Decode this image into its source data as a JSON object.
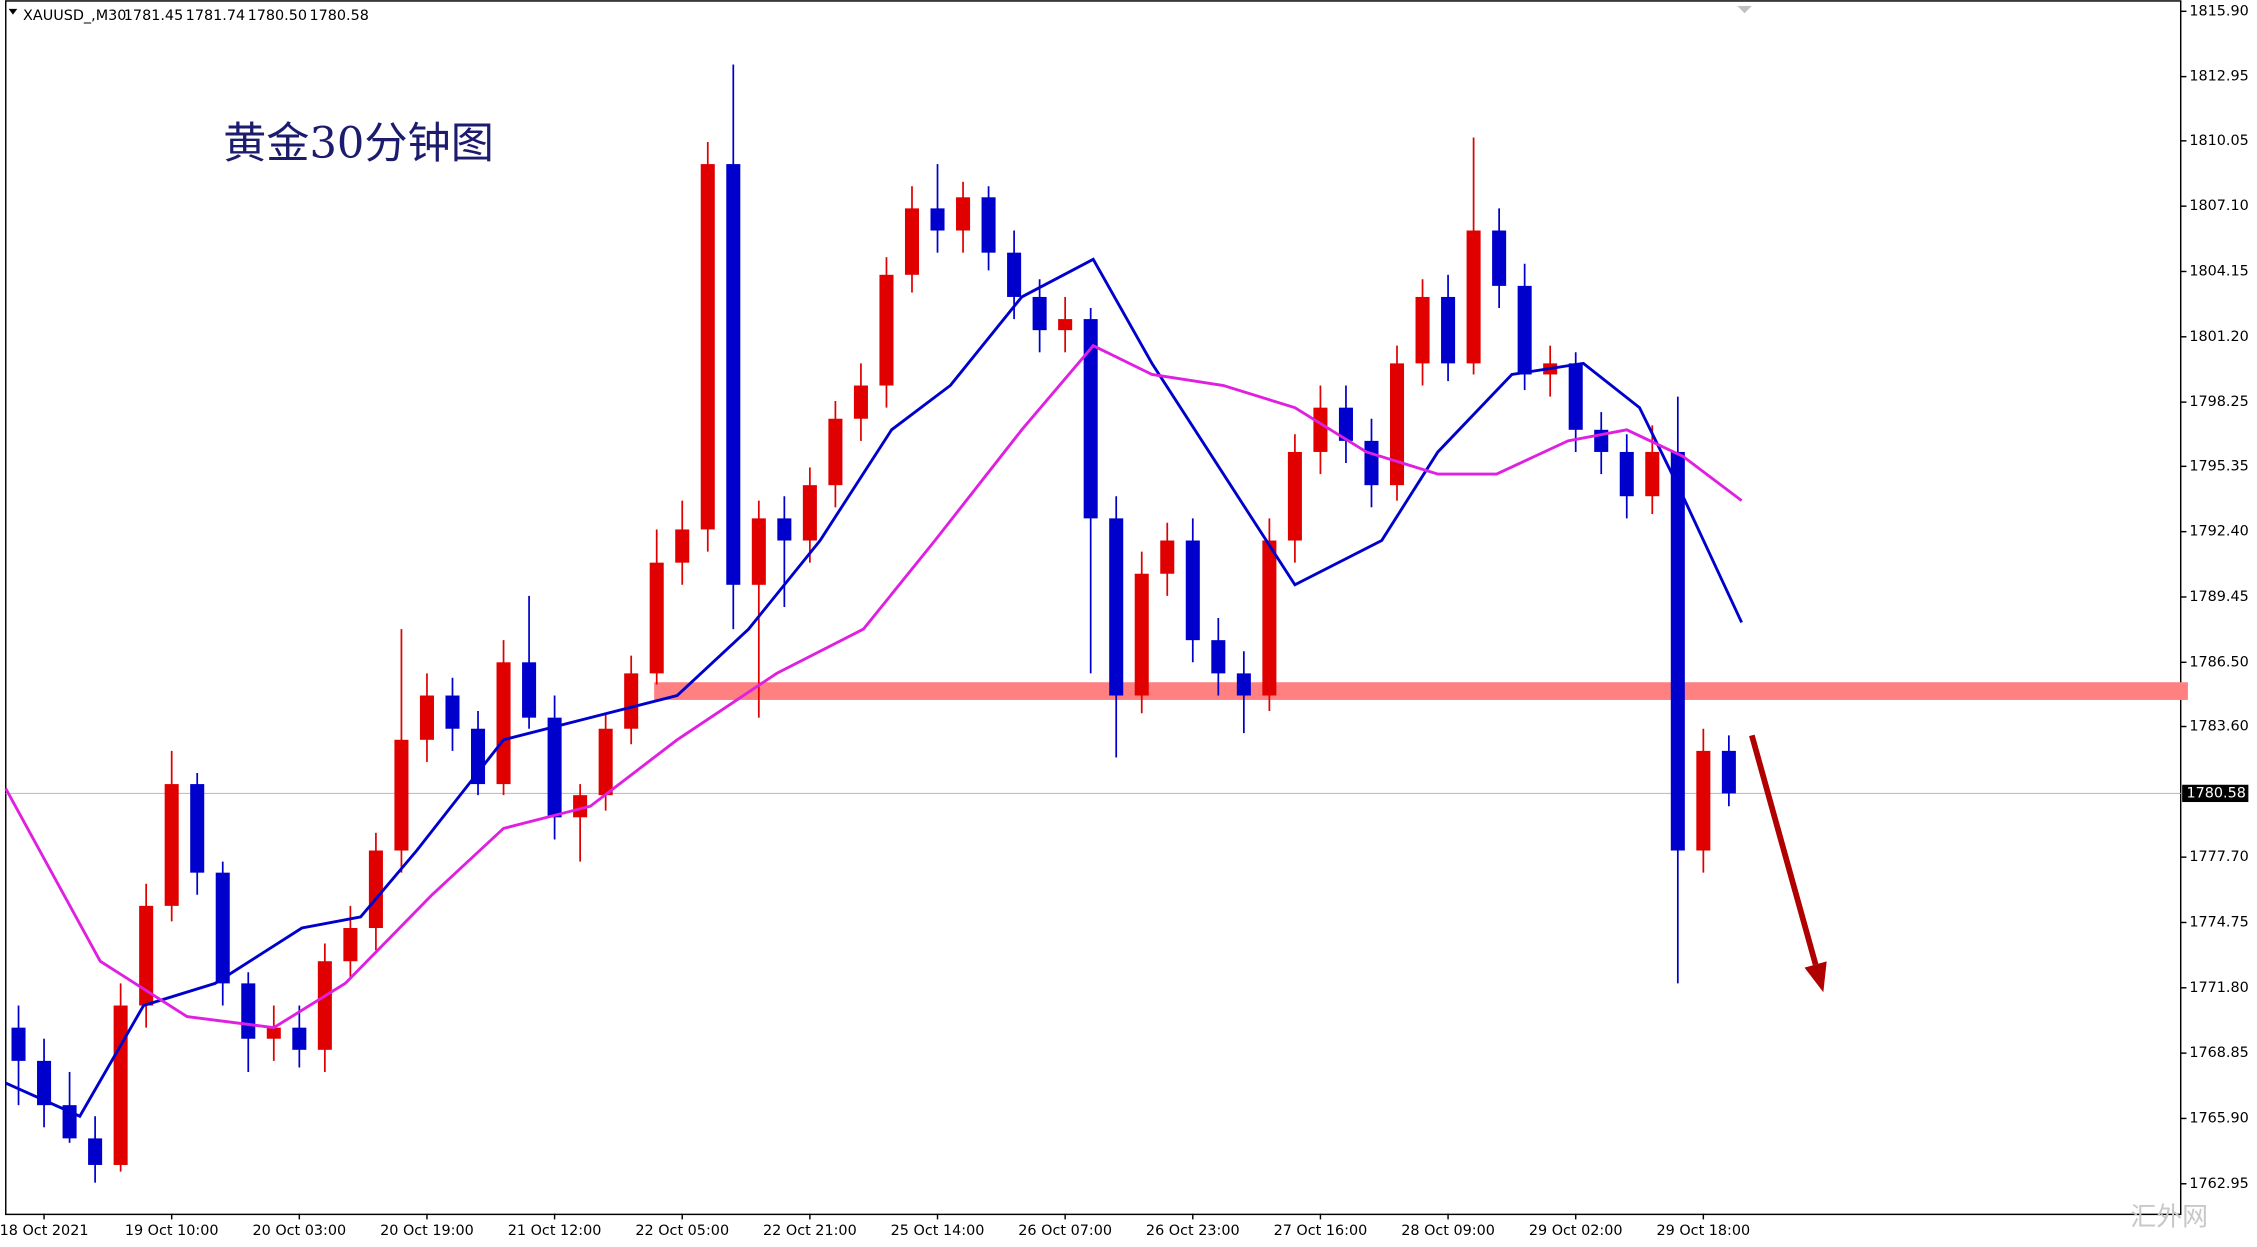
{
  "chart_data": {
    "type": "candlestick",
    "header": {
      "symbol": "XAUUSD_,M30",
      "ohlc": [
        1781.45,
        1781.74,
        {
          "value": 1780.5,
          "label": "1780.50"
        },
        1780.58
      ]
    },
    "title": "黄金30分钟图",
    "watermark": "汇外网",
    "up_color": "#e00000",
    "down_color": "#0000cc",
    "open": [
      1770,
      1768.5,
      1766.5,
      1765,
      1763.8,
      1771,
      1775.5,
      1781,
      1777,
      1772,
      1769.5,
      1770,
      1769,
      1773,
      1774.5,
      1778,
      1783,
      1785,
      1783.5,
      1781,
      1786.5,
      1784,
      1779.5,
      1780.5,
      1783.5,
      1786,
      1791,
      1792.5,
      1809,
      1790,
      1793,
      1792,
      1794.5,
      1797.5,
      1799,
      1804,
      1807,
      1806,
      1807.5,
      1805,
      1803,
      1801.5,
      1802,
      1793,
      1785,
      1790.5,
      1792,
      1787.5,
      1786,
      1785,
      1792,
      1796,
      1798,
      1796.5,
      1794.5,
      1800,
      1803,
      1800,
      1806,
      1803.5,
      1799.5,
      1800,
      1797,
      1796,
      1794,
      1796,
      1778,
      1782.5
    ],
    "high": [
      1771,
      1769.5,
      1768,
      1766,
      1772,
      1776.5,
      1782.5,
      1781.5,
      1777.5,
      1772.5,
      1771,
      1771,
      1773.8,
      1775.5,
      1778.8,
      1788,
      1786,
      1785.8,
      1784.3,
      1787.5,
      1789.5,
      1785,
      1781,
      1784.2,
      1786.8,
      1792.5,
      1793.8,
      1810,
      1813.5,
      1793.8,
      1794,
      1795.3,
      1798.3,
      1800,
      1804.8,
      1808,
      1809,
      1808.2,
      1808,
      1806,
      1803.8,
      1803,
      1802.5,
      1794,
      1791.5,
      1792.8,
      1793,
      1788.5,
      1787,
      1793,
      1796.8,
      1799,
      1799,
      1797.5,
      1800.8,
      1803.8,
      1804,
      1810.2,
      1807,
      1804.5,
      1800.8,
      1800.5,
      1797.8,
      1796.8,
      1797.2,
      1798.5,
      1783.5,
      1783.2
    ],
    "low": [
      1766.5,
      1765.5,
      1764.8,
      1763,
      1763.5,
      1770,
      1774.8,
      1776,
      1771,
      1768,
      1768.5,
      1768.2,
      1768,
      1772.2,
      1773.5,
      1777,
      1782,
      1782.5,
      1780.5,
      1780.5,
      1783.5,
      1778.5,
      1777.5,
      1779.8,
      1782.8,
      1785.5,
      1790,
      1791.5,
      1788,
      1784,
      1789,
      1791,
      1793.5,
      1796.5,
      1798,
      1803.2,
      1805,
      1805,
      1804.2,
      1802,
      1800.5,
      1800.5,
      1786,
      1782.2,
      1784.2,
      1789.5,
      1786.5,
      1785,
      1783.3,
      1784.3,
      1791,
      1795,
      1795.5,
      1793.5,
      1793.8,
      1799,
      1799.2,
      1799.5,
      1802.5,
      1798.8,
      1798.5,
      1796,
      1795,
      1793,
      1793.2,
      1772,
      1777,
      1780
    ],
    "close": [
      1768.5,
      1766.5,
      1765,
      1763.8,
      1771,
      1775.5,
      1781,
      1777,
      1772,
      1769.5,
      1770,
      1769,
      1773,
      1774.5,
      1778,
      1783,
      1785,
      1783.5,
      1781,
      1786.5,
      1784,
      1779.5,
      1780.5,
      1783.5,
      1786,
      1791,
      1792.5,
      1809,
      1790,
      1793,
      1792,
      1794.5,
      1797.5,
      1799,
      1804,
      1807,
      1806,
      1807.5,
      1805,
      1803,
      1801.5,
      1802,
      1793,
      1785,
      1790.5,
      1792,
      1787.5,
      1786,
      1785,
      1792,
      1796,
      1798,
      1796.5,
      1794.5,
      1800,
      1803,
      1800,
      1806,
      1803.5,
      1799.5,
      1800,
      1797,
      1796,
      1794,
      1796,
      1778,
      1782.5,
      1780.58
    ],
    "series": [
      {
        "color": "#0000cc",
        "x": [
          -0.5,
          2.4,
          4.9,
          7.7,
          11.1,
          13.4,
          15.6,
          19.0,
          22.4,
          25.8,
          28.6,
          31.4,
          34.2,
          36.5,
          39.3,
          42.1,
          44.4,
          47.2,
          50.0,
          53.4,
          55.6,
          58.5,
          61.3,
          63.5,
          65.2,
          67.5
        ],
        "values": [
          1767.5,
          1766,
          1771,
          1772,
          1774.5,
          1775,
          1778,
          1783,
          1784,
          1785,
          1788,
          1792,
          1797,
          1799,
          1803,
          1804.7,
          1800,
          1795,
          1790,
          1792,
          1796,
          1799.5,
          1800,
          1798,
          1794,
          1788.3
        ]
      },
      {
        "color": "#e020e0",
        "x": [
          -0.5,
          3.2,
          6.6,
          10.0,
          12.8,
          16.2,
          19.0,
          22.4,
          25.8,
          29.7,
          33.1,
          35.9,
          39.3,
          42.1,
          44.4,
          47.2,
          50.0,
          52.8,
          55.6,
          57.9,
          60.7,
          63.0,
          65.2,
          67.5
        ],
        "values": [
          1780.8,
          1773,
          1770.5,
          1770,
          1772,
          1776,
          1779,
          1780,
          1783,
          1786,
          1788,
          1792,
          1797,
          1800.8,
          1799.5,
          1799,
          1798,
          1796,
          1795,
          1795,
          1796.5,
          1797,
          1795.8,
          1793.8
        ]
      }
    ],
    "zone": {
      "low": 1784.8,
      "high": 1785.6,
      "x_from": 24.9,
      "color": "#ff8080"
    },
    "arrow": {
      "x": [
        67.9,
        70.7
      ],
      "values": [
        1783.2,
        1771.6
      ],
      "color": "#b00000"
    },
    "current_price": 1780.58,
    "xlim": [
      -0.5,
      84.7
    ],
    "ylim": [
      1761.6,
      1816.4
    ],
    "xticks": [
      {
        "value": 1,
        "label": "18 Oct 2021"
      },
      {
        "value": 6,
        "label": "19 Oct 10:00"
      },
      {
        "value": 11,
        "label": "20 Oct 03:00"
      },
      {
        "value": 16,
        "label": "20 Oct 19:00"
      },
      {
        "value": 21,
        "label": "21 Oct 12:00"
      },
      {
        "value": 26,
        "label": "22 Oct 05:00"
      },
      {
        "value": 31,
        "label": "22 Oct 21:00"
      },
      {
        "value": 36,
        "label": "25 Oct 14:00"
      },
      {
        "value": 41,
        "label": "26 Oct 07:00"
      },
      {
        "value": 46,
        "label": "26 Oct 23:00"
      },
      {
        "value": 51,
        "label": "27 Oct 16:00"
      },
      {
        "value": 56,
        "label": "28 Oct 09:00"
      },
      {
        "value": 61,
        "label": "29 Oct 02:00"
      },
      {
        "value": 66,
        "label": "29 Oct 18:00"
      }
    ],
    "yticks": [
      {
        "value": 1815.9,
        "label": "1815.90"
      },
      1812.95,
      1810.05,
      {
        "value": 1807.1,
        "label": "1807.10"
      },
      1804.15,
      {
        "value": 1801.2,
        "label": "1801.20"
      },
      1798.25,
      1795.35,
      {
        "value": 1792.4,
        "label": "1792.40"
      },
      1789.45,
      {
        "value": 1786.5,
        "label": "1786.50"
      },
      {
        "value": 1783.6,
        "label": "1783.60"
      },
      {
        "value": 1777.7,
        "label": "1777.70"
      },
      1774.75,
      {
        "value": 1771.8,
        "label": "1771.80"
      },
      1768.85,
      {
        "value": 1765.9,
        "label": "1765.90"
      },
      1762.95
    ]
  }
}
